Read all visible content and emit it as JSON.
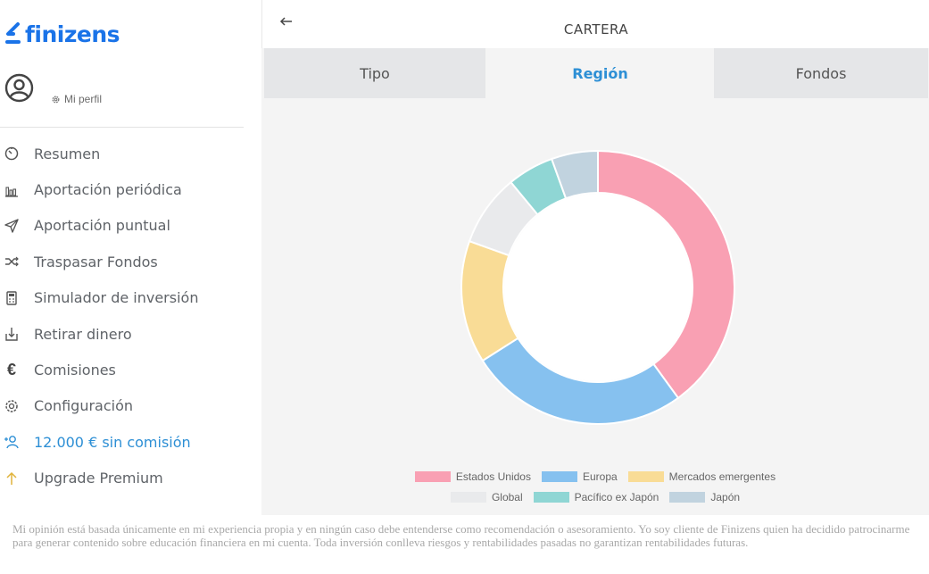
{
  "brand": {
    "name": "finizens",
    "color": "#1a73e8"
  },
  "profile": {
    "link_label": "Mi perfil"
  },
  "menu": [
    {
      "icon": "timer-icon",
      "label": "Resumen"
    },
    {
      "icon": "bar-chart-icon",
      "label": "Aportación periódica"
    },
    {
      "icon": "send-icon",
      "label": "Aportación puntual"
    },
    {
      "icon": "shuffle-icon",
      "label": "Traspasar Fondos"
    },
    {
      "icon": "calculator-icon",
      "label": "Simulador de inversión"
    },
    {
      "icon": "download-tray-icon",
      "label": "Retirar dinero"
    },
    {
      "icon": "euro-icon",
      "label": "Comisiones"
    },
    {
      "icon": "gear-icon",
      "label": "Configuración"
    },
    {
      "icon": "add-user-icon",
      "label": "12.000 € sin comisión"
    },
    {
      "icon": "arrow-up-icon",
      "label": "Upgrade Premium"
    }
  ],
  "header": {
    "title": "CARTERA"
  },
  "tabs": [
    {
      "label": "Tipo",
      "active": false
    },
    {
      "label": "Región",
      "active": true
    },
    {
      "label": "Fondos",
      "active": false
    }
  ],
  "chart_data": {
    "type": "pie",
    "donut": true,
    "categories": [
      "Estados Unidos",
      "Europa",
      "Mercados emergentes",
      "Global",
      "Pacífico ex Japón",
      "Japón"
    ],
    "values": [
      40,
      26,
      14.5,
      8.5,
      5.5,
      5.5
    ],
    "colors": [
      "#f9a0b3",
      "#86c1ef",
      "#f9dc96",
      "#e9eaec",
      "#8fd6d4",
      "#c1d3df"
    ],
    "legend_position": "bottom"
  },
  "disclaimer": "Mi opinión está basada únicamente en mi experiencia propia y en ningún caso debe entenderse como recomendación o asesoramiento. Yo soy cliente de Finizens quien ha decidido patrocinarme para generar contenido sobre educación financiera en mi cuenta. Toda inversión conlleva riesgos y rentabilidades pasadas no garantizan rentabilidades futuras."
}
